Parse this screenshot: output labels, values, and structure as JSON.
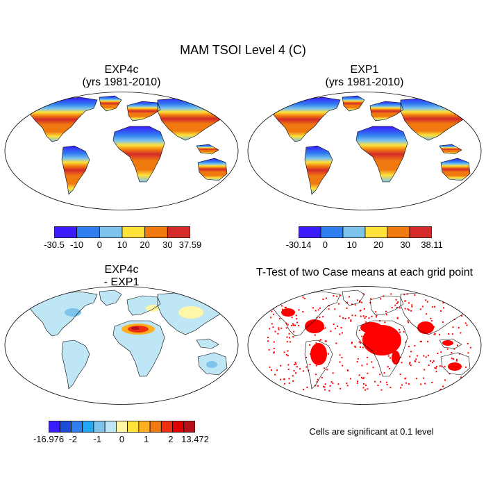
{
  "title": "MAM TSOI Level 4 (C)",
  "panels": [
    {
      "id": "exp4c",
      "title_line1": "EXP4c",
      "title_line2": "(yrs 1981-2010)",
      "colorbar": {
        "labels": [
          "-30.5",
          "-10",
          "0",
          "10",
          "20",
          "30",
          "37.59"
        ],
        "colors": [
          "#3a1cff",
          "#2f7ff0",
          "#7ec3ec",
          "#ffe23a",
          "#f07a10",
          "#d42a2a"
        ]
      }
    },
    {
      "id": "exp1",
      "title_line1": "EXP1",
      "title_line2": "(yrs 1981-2010)",
      "colorbar": {
        "labels": [
          "-30.14",
          "0",
          "10",
          "20",
          "30",
          "38.11"
        ],
        "colors": [
          "#3a1cff",
          "#2f7ff0",
          "#7ec3ec",
          "#ffe23a",
          "#f07a10",
          "#d42a2a"
        ]
      }
    },
    {
      "id": "diff",
      "title_line1": "EXP4c",
      "title_line2": "- EXP1",
      "colorbar": {
        "labels": [
          "-16.976",
          "-2",
          "-1",
          "0",
          "1",
          "2",
          "13.472"
        ],
        "colors": [
          "#3a1cff",
          "#1e4ad8",
          "#2f7ff0",
          "#20a8f2",
          "#7ec3ec",
          "#bfe6f5",
          "#fff6a8",
          "#ffe23a",
          "#ffb020",
          "#f07a10",
          "#ee3010",
          "#e00000",
          "#b8101a"
        ]
      }
    },
    {
      "id": "ttest",
      "title_line1": "T-Test of two Case means at each grid point",
      "note": "Cells are significant at 0.1 level",
      "sig_color": "#ff0000"
    }
  ]
}
